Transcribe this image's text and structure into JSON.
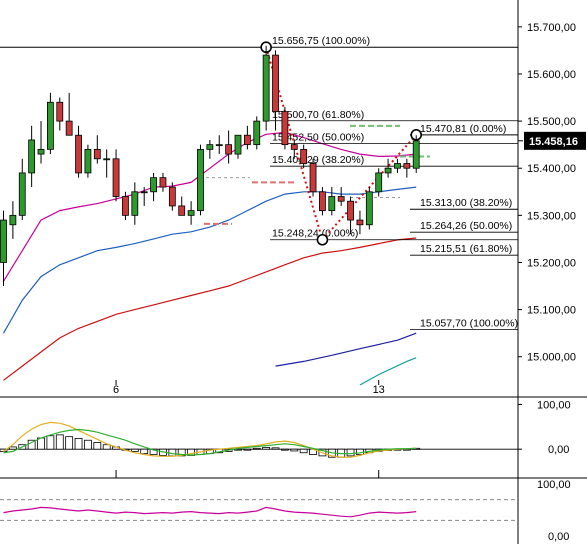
{
  "chart_data": [
    {
      "type": "candlestick",
      "panel": "price",
      "ylim": [
        14940,
        15740
      ],
      "y_ticks": [
        "15.700,00",
        "15.600,00",
        "15.500,00",
        "15.400,00",
        "15.300,00",
        "15.200,00",
        "15.100,00",
        "15.000,00"
      ],
      "y_tick_values": [
        15700,
        15600,
        15500,
        15400,
        15300,
        15200,
        15100,
        15000
      ],
      "x_ticks": [
        "6",
        "13"
      ],
      "x_tick_index": [
        12,
        40
      ],
      "current_price": {
        "label": "15.458,16",
        "value": 15458.16
      },
      "candles": [
        {
          "o": 15200,
          "h": 15310,
          "l": 15150,
          "c": 15290
        },
        {
          "o": 15280,
          "h": 15330,
          "l": 15250,
          "c": 15300
        },
        {
          "o": 15300,
          "h": 15420,
          "l": 15290,
          "c": 15390
        },
        {
          "o": 15390,
          "h": 15490,
          "l": 15360,
          "c": 15460
        },
        {
          "o": 15430,
          "h": 15500,
          "l": 15410,
          "c": 15440
        },
        {
          "o": 15440,
          "h": 15560,
          "l": 15430,
          "c": 15540
        },
        {
          "o": 15540,
          "h": 15550,
          "l": 15480,
          "c": 15500
        },
        {
          "o": 15500,
          "h": 15560,
          "l": 15470,
          "c": 15470
        },
        {
          "o": 15470,
          "h": 15490,
          "l": 15380,
          "c": 15390
        },
        {
          "o": 15390,
          "h": 15450,
          "l": 15380,
          "c": 15440
        },
        {
          "o": 15440,
          "h": 15470,
          "l": 15410,
          "c": 15420
        },
        {
          "o": 15420,
          "h": 15440,
          "l": 15380,
          "c": 15420
        },
        {
          "o": 15420,
          "h": 15440,
          "l": 15330,
          "c": 15340
        },
        {
          "o": 15340,
          "h": 15350,
          "l": 15290,
          "c": 15300
        },
        {
          "o": 15300,
          "h": 15370,
          "l": 15280,
          "c": 15350
        },
        {
          "o": 15350,
          "h": 15360,
          "l": 15320,
          "c": 15350
        },
        {
          "o": 15350,
          "h": 15390,
          "l": 15330,
          "c": 15380
        },
        {
          "o": 15380,
          "h": 15390,
          "l": 15350,
          "c": 15360
        },
        {
          "o": 15360,
          "h": 15370,
          "l": 15310,
          "c": 15320
        },
        {
          "o": 15320,
          "h": 15340,
          "l": 15300,
          "c": 15300
        },
        {
          "o": 15300,
          "h": 15330,
          "l": 15280,
          "c": 15310
        },
        {
          "o": 15310,
          "h": 15450,
          "l": 15300,
          "c": 15440
        },
        {
          "o": 15440,
          "h": 15460,
          "l": 15420,
          "c": 15450
        },
        {
          "o": 15450,
          "h": 15470,
          "l": 15430,
          "c": 15450
        },
        {
          "o": 15450,
          "h": 15480,
          "l": 15410,
          "c": 15430
        },
        {
          "o": 15430,
          "h": 15470,
          "l": 15420,
          "c": 15470
        },
        {
          "o": 15470,
          "h": 15490,
          "l": 15440,
          "c": 15450
        },
        {
          "o": 15450,
          "h": 15510,
          "l": 15440,
          "c": 15500
        },
        {
          "o": 15500,
          "h": 15660,
          "l": 15480,
          "c": 15640
        },
        {
          "o": 15640,
          "h": 15650,
          "l": 15480,
          "c": 15520
        },
        {
          "o": 15520,
          "h": 15530,
          "l": 15440,
          "c": 15450
        },
        {
          "o": 15450,
          "h": 15460,
          "l": 15420,
          "c": 15440
        },
        {
          "o": 15440,
          "h": 15450,
          "l": 15400,
          "c": 15410
        },
        {
          "o": 15410,
          "h": 15420,
          "l": 15340,
          "c": 15350
        },
        {
          "o": 15350,
          "h": 15360,
          "l": 15300,
          "c": 15310
        },
        {
          "o": 15310,
          "h": 15360,
          "l": 15300,
          "c": 15340
        },
        {
          "o": 15340,
          "h": 15360,
          "l": 15320,
          "c": 15330
        },
        {
          "o": 15330,
          "h": 15340,
          "l": 15260,
          "c": 15290
        },
        {
          "o": 15290,
          "h": 15310,
          "l": 15260,
          "c": 15280
        },
        {
          "o": 15280,
          "h": 15360,
          "l": 15270,
          "c": 15350
        },
        {
          "o": 15350,
          "h": 15400,
          "l": 15340,
          "c": 15390
        },
        {
          "o": 15390,
          "h": 15420,
          "l": 15380,
          "c": 15400
        },
        {
          "o": 15400,
          "h": 15420,
          "l": 15390,
          "c": 15410
        },
        {
          "o": 15410,
          "h": 15420,
          "l": 15380,
          "c": 15400
        },
        {
          "o": 15400,
          "h": 15470,
          "l": 15390,
          "c": 15458.16
        }
      ],
      "moving_averages": [
        {
          "color": "#c8009a",
          "points": [
            [
              0,
              15160
            ],
            [
              2,
              15225
            ],
            [
              4,
              15290
            ],
            [
              6,
              15310
            ],
            [
              8,
              15318
            ],
            [
              10,
              15325
            ],
            [
              12,
              15335
            ],
            [
              14,
              15345
            ],
            [
              16,
              15360
            ],
            [
              18,
              15362
            ],
            [
              20,
              15370
            ],
            [
              22,
              15400
            ],
            [
              24,
              15430
            ],
            [
              26,
              15455
            ],
            [
              28,
              15472
            ],
            [
              30,
              15476
            ],
            [
              32,
              15465
            ],
            [
              34,
              15452
            ],
            [
              36,
              15440
            ],
            [
              38,
              15430
            ],
            [
              40,
              15425
            ],
            [
              42,
              15426
            ],
            [
              44,
              15430
            ]
          ]
        },
        {
          "color": "#1f5fbf",
          "points": [
            [
              0,
              15050
            ],
            [
              2,
              15120
            ],
            [
              4,
              15170
            ],
            [
              6,
              15195
            ],
            [
              8,
              15210
            ],
            [
              10,
              15225
            ],
            [
              12,
              15232
            ],
            [
              14,
              15240
            ],
            [
              16,
              15250
            ],
            [
              18,
              15260
            ],
            [
              20,
              15265
            ],
            [
              22,
              15275
            ],
            [
              24,
              15290
            ],
            [
              26,
              15310
            ],
            [
              28,
              15330
            ],
            [
              30,
              15345
            ],
            [
              32,
              15350
            ],
            [
              34,
              15350
            ],
            [
              36,
              15345
            ],
            [
              38,
              15345
            ],
            [
              40,
              15350
            ],
            [
              42,
              15355
            ],
            [
              44,
              15360
            ]
          ]
        },
        {
          "color": "#cc1010",
          "points": [
            [
              0,
              14950
            ],
            [
              2,
              14980
            ],
            [
              4,
              15010
            ],
            [
              6,
              15040
            ],
            [
              8,
              15060
            ],
            [
              10,
              15075
            ],
            [
              12,
              15090
            ],
            [
              14,
              15100
            ],
            [
              16,
              15110
            ],
            [
              18,
              15120
            ],
            [
              20,
              15130
            ],
            [
              22,
              15140
            ],
            [
              24,
              15150
            ],
            [
              26,
              15165
            ],
            [
              28,
              15180
            ],
            [
              30,
              15195
            ],
            [
              32,
              15210
            ],
            [
              34,
              15220
            ],
            [
              36,
              15225
            ],
            [
              38,
              15232
            ],
            [
              40,
              15240
            ],
            [
              42,
              15248
            ],
            [
              44,
              15252
            ]
          ]
        },
        {
          "color": "#2020a0",
          "points": [
            [
              29,
              14980
            ],
            [
              32,
              14990
            ],
            [
              35,
              15003
            ],
            [
              38,
              15017
            ],
            [
              42,
              15035
            ],
            [
              44,
              15050
            ]
          ]
        },
        {
          "color": "#14a09a",
          "points": [
            [
              38,
              14940
            ],
            [
              40,
              14962
            ],
            [
              43,
              14990
            ],
            [
              44,
              14998
            ]
          ]
        }
      ],
      "fibonacci_levels": [
        {
          "label": "15.656,75 (100.00%)",
          "value": 15656.75
        },
        {
          "label": "15.500,70 (61.80%)",
          "value": 15500.7
        },
        {
          "label": "15.452,50 (50.00%)",
          "value": 15452.5
        },
        {
          "label": "15.404,29 (38.20%)",
          "value": 15404.29
        },
        {
          "label": "15.248,24 (0.00%)",
          "value": 15248.24
        },
        {
          "label": "15.470,81 (0.00%)",
          "value": 15470.81
        },
        {
          "label": "15.313,00 (38.20%)",
          "value": 15313.0
        },
        {
          "label": "15.264,26 (50.00%)",
          "value": 15264.26
        },
        {
          "label": "15.215,51 (61.80%)",
          "value": 15215.51
        },
        {
          "label": "15.057,70 (100.00%)",
          "value": 15057.7
        }
      ],
      "fib_pivots": [
        {
          "i": 28,
          "value": 15656.75
        },
        {
          "i": 34,
          "value": 15248.24
        },
        {
          "i": 44,
          "value": 15470.81
        }
      ]
    },
    {
      "type": "bar",
      "panel": "macd",
      "y_ticks": [
        "100,00",
        "0,00"
      ],
      "ylim": [
        -60,
        110
      ],
      "histogram": [
        -5,
        5,
        10,
        20,
        25,
        30,
        32,
        28,
        24,
        20,
        15,
        10,
        5,
        0,
        -5,
        -10,
        -12,
        -14,
        -15,
        -15,
        -14,
        -12,
        -10,
        -8,
        -5,
        -2,
        0,
        2,
        4,
        3,
        0,
        -4,
        -8,
        -12,
        -15,
        -18,
        -18,
        -15,
        -12,
        -8,
        -5,
        -3,
        -1,
        0,
        2
      ],
      "signal_yellow": [
        -5,
        10,
        30,
        45,
        55,
        60,
        58,
        52,
        42,
        32,
        22,
        12,
        5,
        -2,
        -8,
        -12,
        -15,
        -16,
        -16,
        -14,
        -10,
        -6,
        -2,
        0,
        2,
        4,
        6,
        8,
        12,
        16,
        18,
        15,
        8,
        0,
        -8,
        -15,
        -18,
        -18,
        -14,
        -8,
        -4,
        -2,
        0,
        1,
        2
      ],
      "signal_green": [
        -8,
        -5,
        5,
        15,
        25,
        32,
        38,
        42,
        44,
        42,
        38,
        32,
        26,
        20,
        12,
        5,
        -2,
        -6,
        -10,
        -12,
        -13,
        -12,
        -10,
        -6,
        -2,
        2,
        4,
        6,
        8,
        10,
        12,
        10,
        6,
        2,
        -3,
        -8,
        -10,
        -10,
        -8,
        -5,
        -2,
        0,
        1,
        1,
        2
      ]
    },
    {
      "type": "line",
      "panel": "oscillator",
      "y_ticks": [
        "100,00",
        "0,00"
      ],
      "ylim": [
        0,
        100
      ],
      "dashed_levels": [
        70,
        30
      ],
      "series": [
        {
          "color": "#c8009a",
          "values": [
            45,
            48,
            50,
            52,
            55,
            54,
            52,
            50,
            48,
            50,
            48,
            46,
            44,
            46,
            45,
            43,
            44,
            45,
            44,
            46,
            47,
            45,
            44,
            43,
            45,
            44,
            46,
            48,
            55,
            52,
            48,
            46,
            45,
            44,
            42,
            40,
            38,
            37,
            40,
            44,
            46,
            45,
            44,
            45,
            47
          ]
        }
      ]
    }
  ]
}
